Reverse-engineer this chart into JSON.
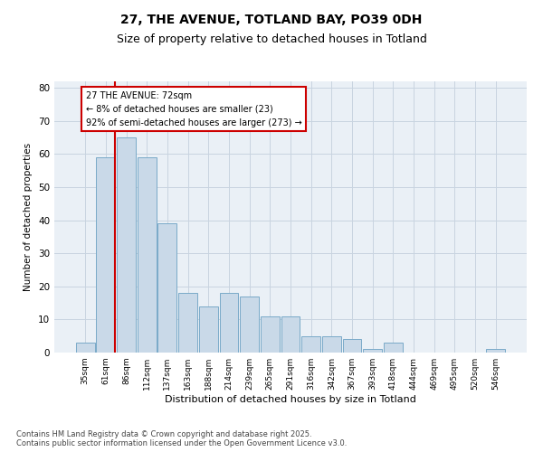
{
  "title_line1": "27, THE AVENUE, TOTLAND BAY, PO39 0DH",
  "title_line2": "Size of property relative to detached houses in Totland",
  "xlabel": "Distribution of detached houses by size in Totland",
  "ylabel": "Number of detached properties",
  "categories": [
    "35sqm",
    "61sqm",
    "86sqm",
    "112sqm",
    "137sqm",
    "163sqm",
    "188sqm",
    "214sqm",
    "239sqm",
    "265sqm",
    "291sqm",
    "316sqm",
    "342sqm",
    "367sqm",
    "393sqm",
    "418sqm",
    "444sqm",
    "469sqm",
    "495sqm",
    "520sqm",
    "546sqm"
  ],
  "values": [
    3,
    59,
    65,
    59,
    39,
    18,
    14,
    18,
    17,
    11,
    11,
    5,
    5,
    4,
    1,
    3,
    0,
    0,
    0,
    0,
    1
  ],
  "bar_color": "#c9d9e8",
  "bar_edge_color": "#7aaac8",
  "vline_color": "#cc0000",
  "vline_x": 1.46,
  "annotation_text": "27 THE AVENUE: 72sqm\n← 8% of detached houses are smaller (23)\n92% of semi-detached houses are larger (273) →",
  "annotation_edge_color": "#cc0000",
  "ylim_max": 82,
  "yticks": [
    0,
    10,
    20,
    30,
    40,
    50,
    60,
    70,
    80
  ],
  "grid_color": "#c8d4e0",
  "plot_bg_color": "#eaf0f6",
  "footer_text": "Contains HM Land Registry data © Crown copyright and database right 2025.\nContains public sector information licensed under the Open Government Licence v3.0.",
  "title_fontsize": 10,
  "subtitle_fontsize": 9,
  "annotation_fontsize": 7,
  "footer_fontsize": 6,
  "ylabel_fontsize": 7.5,
  "xlabel_fontsize": 8,
  "ytick_fontsize": 7.5,
  "xtick_fontsize": 6.5
}
